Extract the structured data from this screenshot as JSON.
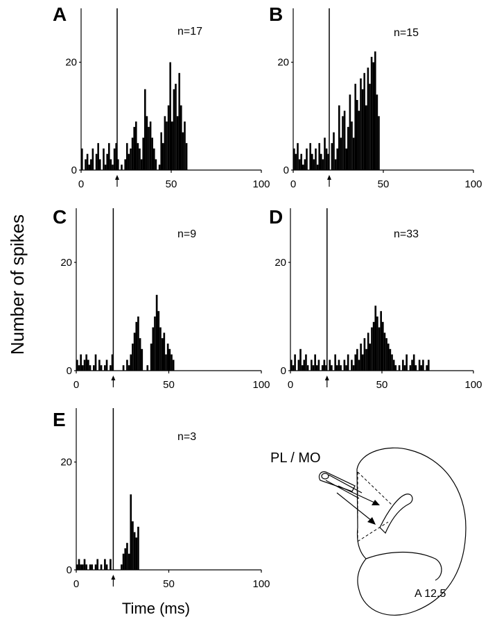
{
  "figure": {
    "ylabel": "Number of spikes",
    "xlabel": "Time (ms)",
    "brain_label": "PL / MO",
    "section_label": "A 12.5"
  },
  "chart_data": [
    {
      "type": "bar",
      "panel": "A",
      "n_label": "n=17",
      "xlim": [
        0,
        100
      ],
      "ylim": [
        0,
        30
      ],
      "xticks": [
        0,
        50,
        100
      ],
      "yticks": [
        0,
        20
      ],
      "stimulus_ms": 20,
      "bin_ms": 1,
      "values": [
        4,
        0,
        2,
        3,
        1,
        2,
        4,
        0,
        3,
        5,
        2,
        0,
        4,
        1,
        3,
        5,
        2,
        1,
        4,
        5,
        2,
        0,
        1,
        0,
        2,
        5,
        3,
        4,
        6,
        8,
        9,
        5,
        4,
        2,
        6,
        15,
        10,
        8,
        9,
        6,
        4,
        2,
        0,
        1,
        7,
        5,
        10,
        9,
        12,
        20,
        9,
        15,
        16,
        10,
        18,
        12,
        7,
        9,
        5,
        0
      ],
      "values_start_ms": 1
    },
    {
      "type": "bar",
      "panel": "B",
      "n_label": "n=15",
      "xlim": [
        0,
        100
      ],
      "ylim": [
        0,
        30
      ],
      "xticks": [
        0,
        50,
        100
      ],
      "yticks": [
        0,
        20
      ],
      "stimulus_ms": 20,
      "bin_ms": 1,
      "values": [
        4,
        3,
        5,
        2,
        3,
        1,
        2,
        4,
        0,
        5,
        3,
        2,
        4,
        1,
        5,
        3,
        2,
        6,
        4,
        3,
        0,
        5,
        7,
        2,
        4,
        12,
        6,
        10,
        11,
        4,
        8,
        14,
        9,
        6,
        16,
        13,
        11,
        17,
        15,
        18,
        12,
        19,
        16,
        21,
        20,
        22,
        14,
        10,
        0
      ],
      "values_start_ms": 1
    },
    {
      "type": "bar",
      "panel": "C",
      "n_label": "n=9",
      "xlim": [
        0,
        100
      ],
      "ylim": [
        0,
        30
      ],
      "xticks": [
        0,
        50,
        100
      ],
      "yticks": [
        0,
        20
      ],
      "stimulus_ms": 20,
      "bin_ms": 1,
      "values": [
        2,
        1,
        3,
        1,
        2,
        3,
        2,
        1,
        0,
        1,
        3,
        0,
        2,
        1,
        0,
        1,
        2,
        0,
        1,
        3,
        0,
        0,
        0,
        0,
        0,
        1,
        0,
        2,
        1,
        3,
        5,
        7,
        9,
        10,
        6,
        4,
        0,
        0,
        1,
        0,
        5,
        8,
        10,
        14,
        11,
        8,
        6,
        7,
        3,
        5,
        4,
        3,
        2,
        0
      ],
      "values_start_ms": 1
    },
    {
      "type": "bar",
      "panel": "D",
      "n_label": "n=33",
      "xlim": [
        0,
        100
      ],
      "ylim": [
        0,
        30
      ],
      "xticks": [
        0,
        50,
        100
      ],
      "yticks": [
        0,
        20
      ],
      "stimulus_ms": 20,
      "bin_ms": 1,
      "values": [
        2,
        1,
        3,
        0,
        2,
        4,
        1,
        2,
        3,
        1,
        0,
        2,
        1,
        3,
        1,
        2,
        0,
        1,
        2,
        1,
        0,
        2,
        1,
        0,
        3,
        1,
        2,
        1,
        0,
        2,
        1,
        3,
        0,
        2,
        1,
        3,
        4,
        2,
        5,
        3,
        6,
        4,
        7,
        5,
        8,
        9,
        12,
        10,
        8,
        11,
        9,
        7,
        6,
        5,
        4,
        3,
        2,
        1,
        0,
        1,
        0,
        2,
        1,
        3,
        0,
        1,
        2,
        3,
        1,
        0,
        2,
        1,
        2,
        0,
        1,
        2
      ],
      "values_start_ms": 1
    },
    {
      "type": "bar",
      "panel": "E",
      "n_label": "n=3",
      "xlim": [
        0,
        100
      ],
      "ylim": [
        0,
        30
      ],
      "xticks": [
        0,
        50,
        100
      ],
      "yticks": [
        0,
        20
      ],
      "stimulus_ms": 20,
      "bin_ms": 1,
      "values": [
        1,
        2,
        1,
        1,
        2,
        1,
        0,
        1,
        1,
        0,
        1,
        2,
        0,
        1,
        0,
        2,
        1,
        0,
        2,
        0,
        0,
        0,
        0,
        0,
        1,
        3,
        4,
        5,
        3,
        14,
        9,
        7,
        6,
        8,
        0
      ],
      "values_start_ms": 1
    }
  ]
}
